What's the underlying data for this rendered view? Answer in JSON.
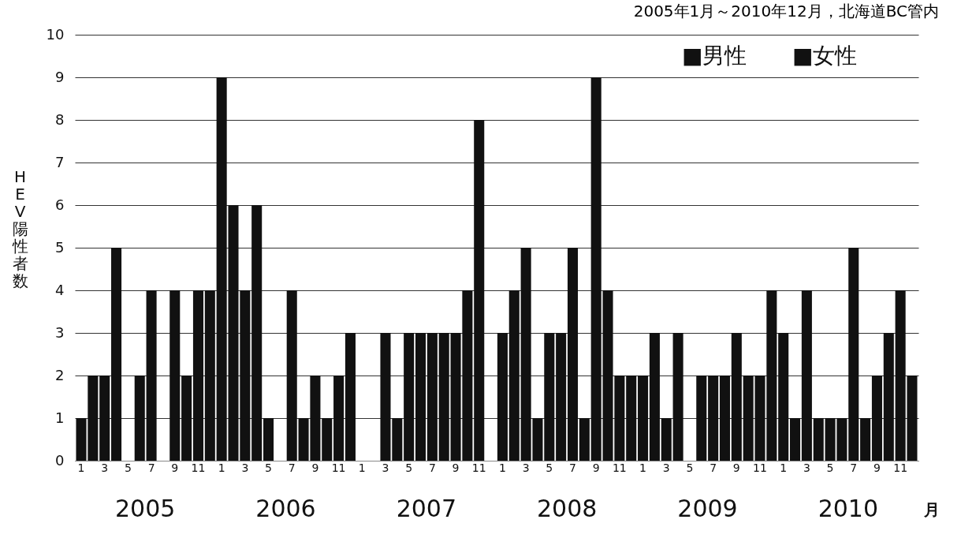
{
  "chart_data": {
    "type": "bar",
    "title": "2005年1月～2010年12月，北海道BC管内",
    "xlabel": "月",
    "ylabel": "HEV陽性者数",
    "categories": [
      "1",
      null,
      "3",
      null,
      "5",
      null,
      "7",
      null,
      "9",
      null,
      "11",
      null,
      "1",
      null,
      "3",
      null,
      "5",
      null,
      "7",
      null,
      "9",
      null,
      "11",
      null,
      "1",
      null,
      "3",
      null,
      "5",
      null,
      "7",
      null,
      "9",
      null,
      "11",
      null,
      "1",
      null,
      "3",
      null,
      "5",
      null,
      "7",
      null,
      "9",
      null,
      "11",
      null,
      "1",
      null,
      "3",
      null,
      "5",
      null,
      "7",
      null,
      "9",
      null,
      "11",
      null,
      "1",
      null,
      "3",
      null,
      "5",
      null,
      "7",
      null,
      "9",
      null,
      "11",
      null
    ],
    "series": [
      {
        "color": "#111111",
        "values": [
          1,
          2,
          2,
          5,
          0,
          2,
          4,
          0,
          4,
          2,
          4,
          4,
          9,
          6,
          4,
          6,
          1,
          0,
          4,
          1,
          2,
          1,
          2,
          3,
          0,
          0,
          3,
          1,
          3,
          3,
          3,
          3,
          3,
          4,
          8,
          0,
          3,
          4,
          5,
          1,
          3,
          3,
          5,
          1,
          9,
          4,
          2,
          2,
          2,
          3,
          1,
          3,
          0,
          2,
          2,
          2,
          3,
          2,
          2,
          4,
          3,
          1,
          4,
          1,
          1,
          1,
          5,
          1,
          2,
          3,
          4,
          2
        ]
      }
    ],
    "ylim": [
      0,
      10
    ],
    "yticks": [
      0,
      1,
      2,
      3,
      4,
      5,
      6,
      7,
      8,
      9,
      10
    ],
    "grid": "y",
    "annotations": [
      "■男性",
      "■女性",
      "2005",
      "2006",
      "2007",
      "2008",
      "2009",
      "2010"
    ]
  }
}
